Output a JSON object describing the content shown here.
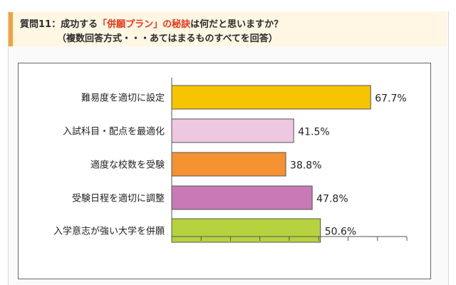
{
  "question": {
    "prefix": "質問11：成功する",
    "highlight": "「併願プラン」の秘訣",
    "suffix": "は何だと思いますか？",
    "note": "（複数回答方式・・・あてはまるものすべてを回答）"
  },
  "chart_data": {
    "type": "bar",
    "orientation": "horizontal",
    "categories": [
      "難易度を適切に設定",
      "入試科目・配点を最適化",
      "適度な校数を受験",
      "受験日程を適切に調整",
      "入学意志が強い大学を併願"
    ],
    "values": [
      67.7,
      41.5,
      38.8,
      47.8,
      50.6
    ],
    "value_labels": [
      "67.7%",
      "41.5%",
      "38.8%",
      "47.8%",
      "50.6%"
    ],
    "colors": [
      "#f6c400",
      "#eec7e1",
      "#f59231",
      "#c979b6",
      "#b6d23f"
    ],
    "xlim": [
      0,
      80
    ],
    "x_ticks": 8,
    "grid": false
  }
}
